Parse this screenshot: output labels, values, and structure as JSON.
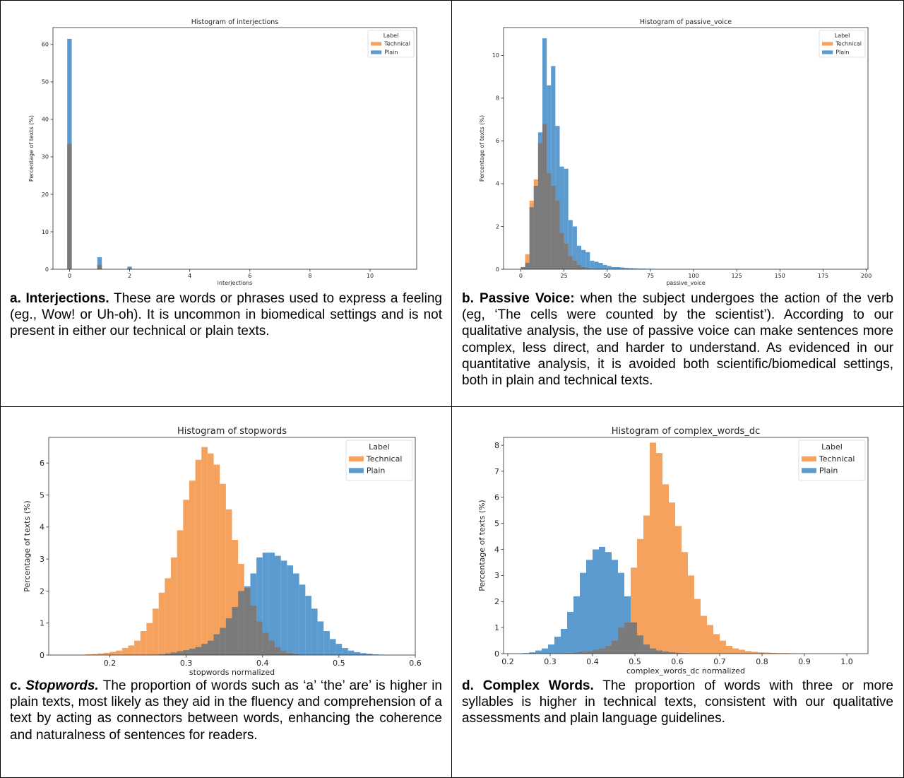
{
  "colors": {
    "technical": "#f5a25e",
    "plain": "#5b9bd0",
    "overlap": "#7b7b7b",
    "axes": "#262626"
  },
  "panels": [
    {
      "id": "a",
      "caption": {
        "head": "a. Interjections.",
        "head_italic": "",
        "body": " These are words or phrases used to express a feeling (eg., Wow! or Uh-oh). It is uncommon in biomedical settings and is not present in either our technical or plain texts."
      }
    },
    {
      "id": "b",
      "caption": {
        "head": "b. Passive Voice:",
        "head_italic": "",
        "body": " when the subject undergoes the action of the verb (eg, ‘The cells were counted by the scientist’). According to our qualitative analysis, the use of passive voice can make sentences more complex, less direct, and harder to understand. As evidenced in our quantitative analysis, it is avoided both scientific/biomedical settings, both in plain and technical texts."
      }
    },
    {
      "id": "c",
      "caption": {
        "head": "c. ",
        "head_italic": "Stopwords.",
        "body": " The proportion of words such as ‘a’ ‘the’ are’ is higher in plain texts, most likely as they aid in the fluency and comprehension of a text by acting as connectors between words, enhancing the coherence and naturalness of sentences for readers."
      }
    },
    {
      "id": "d",
      "caption": {
        "head": "d. Complex Words.",
        "head_italic": "",
        "body": " The proportion of words with three or more syllables is higher in technical texts, consistent with our qualitative assessments and plain language guidelines."
      }
    }
  ],
  "chart_data": [
    {
      "type": "bar",
      "title": "Histogram of interjections",
      "xlabel": "interjections",
      "ylabel": "Percentage of texts (%)",
      "xlim": [
        -0.55,
        11.55
      ],
      "ylim": [
        0,
        64.5
      ],
      "xticks": [
        0,
        2,
        4,
        6,
        8,
        10
      ],
      "xtick_labels": [
        "0",
        "2",
        "4",
        "6",
        "8",
        "10"
      ],
      "yticks": [
        0,
        10,
        20,
        30,
        40,
        50,
        60
      ],
      "ytick_labels": [
        "0",
        "10",
        "20",
        "30",
        "40",
        "50",
        "60"
      ],
      "bin_width": 0.15,
      "legend": {
        "title": "Label",
        "position": "top-right"
      },
      "series": [
        {
          "name": "Technical",
          "color": "technical",
          "x": [
            0,
            1,
            2
          ],
          "values": [
            33.5,
            1.2,
            0.2
          ]
        },
        {
          "name": "Plain",
          "color": "plain",
          "x": [
            0,
            1,
            2
          ],
          "values": [
            61.5,
            3.2,
            0.7
          ]
        }
      ]
    },
    {
      "type": "bar",
      "title": "Histogram of passive_voice",
      "xlabel": "passive_voice",
      "ylabel": "Percentage of texts (%)",
      "xlim": [
        -10,
        201
      ],
      "ylim": [
        0,
        11.3
      ],
      "xticks": [
        0,
        25,
        50,
        75,
        100,
        125,
        150,
        175,
        200
      ],
      "xtick_labels": [
        "0",
        "25",
        "50",
        "75",
        "100",
        "125",
        "150",
        "175",
        "200"
      ],
      "yticks": [
        0,
        2,
        4,
        6,
        8,
        10
      ],
      "ytick_labels": [
        "0",
        "2",
        "4",
        "6",
        "8",
        "10"
      ],
      "bin_width": 2.5,
      "legend": {
        "title": "Label",
        "position": "top-right"
      },
      "series": [
        {
          "name": "Technical",
          "color": "technical",
          "x": [
            1.25,
            3.75,
            6.25,
            8.75,
            11.25,
            13.75,
            16.25,
            18.75,
            21.25,
            23.75,
            26.25,
            28.75,
            31.25,
            33.75,
            36.25,
            38.75
          ],
          "values": [
            0.1,
            0.7,
            3.2,
            4.2,
            5.9,
            6.8,
            4.5,
            3.9,
            3.2,
            1.7,
            1.2,
            0.6,
            0.4,
            0.2,
            0.1,
            0.05
          ]
        },
        {
          "name": "Plain",
          "color": "plain",
          "x": [
            1.25,
            3.75,
            6.25,
            8.75,
            11.25,
            13.75,
            16.25,
            18.75,
            21.25,
            23.75,
            26.25,
            28.75,
            31.25,
            33.75,
            36.25,
            38.75,
            41.25,
            43.75,
            46.25,
            48.75,
            51.25,
            53.75,
            56.25,
            58.75,
            61.25,
            63.75,
            66.25,
            68.75,
            71.25,
            73.75,
            76.25
          ],
          "values": [
            0.1,
            0.3,
            2.9,
            3.9,
            6.4,
            10.8,
            8.6,
            9.5,
            6.7,
            4.8,
            4.7,
            2.3,
            2.0,
            1.1,
            0.9,
            0.8,
            0.4,
            0.35,
            0.3,
            0.2,
            0.15,
            0.1,
            0.1,
            0.08,
            0.06,
            0.05,
            0.04,
            0.03,
            0.03,
            0.02,
            0.02
          ]
        }
      ]
    },
    {
      "type": "bar",
      "title": "Histogram of stopwords",
      "xlabel": "stopwords normalized",
      "ylabel": "Percentage of texts (%)",
      "xlim": [
        0.12,
        0.6
      ],
      "ylim": [
        0,
        6.8
      ],
      "xticks": [
        0.2,
        0.3,
        0.4,
        0.5,
        0.6
      ],
      "xtick_labels": [
        "0.2",
        "0.3",
        "0.4",
        "0.5",
        "0.6"
      ],
      "yticks": [
        0,
        1,
        2,
        3,
        4,
        5,
        6
      ],
      "ytick_labels": [
        "0",
        "1",
        "2",
        "3",
        "4",
        "5",
        "6"
      ],
      "bin_width": 0.008,
      "legend": {
        "title": "Label",
        "position": "top-right"
      },
      "series": [
        {
          "name": "Technical",
          "color": "technical",
          "x": [
            0.172,
            0.18,
            0.188,
            0.196,
            0.204,
            0.212,
            0.22,
            0.228,
            0.236,
            0.244,
            0.252,
            0.26,
            0.268,
            0.276,
            0.284,
            0.292,
            0.3,
            0.308,
            0.316,
            0.324,
            0.332,
            0.34,
            0.348,
            0.356,
            0.364,
            0.372,
            0.38,
            0.388,
            0.396,
            0.404,
            0.412,
            0.42,
            0.428,
            0.436,
            0.444
          ],
          "values": [
            0.02,
            0.03,
            0.05,
            0.07,
            0.1,
            0.14,
            0.22,
            0.3,
            0.45,
            0.75,
            1.0,
            1.45,
            1.95,
            2.4,
            3.05,
            3.9,
            4.85,
            5.45,
            6.1,
            6.5,
            6.3,
            5.95,
            5.35,
            4.55,
            3.6,
            2.85,
            2.1,
            1.55,
            1.05,
            0.7,
            0.45,
            0.25,
            0.13,
            0.07,
            0.03
          ]
        },
        {
          "name": "Plain",
          "color": "plain",
          "x": [
            0.26,
            0.268,
            0.276,
            0.284,
            0.292,
            0.3,
            0.308,
            0.316,
            0.324,
            0.332,
            0.34,
            0.348,
            0.356,
            0.364,
            0.372,
            0.38,
            0.388,
            0.396,
            0.404,
            0.412,
            0.42,
            0.428,
            0.436,
            0.444,
            0.452,
            0.46,
            0.468,
            0.476,
            0.484,
            0.492,
            0.5,
            0.508,
            0.516,
            0.524,
            0.532,
            0.54,
            0.548,
            0.556
          ],
          "values": [
            0.01,
            0.02,
            0.05,
            0.08,
            0.12,
            0.15,
            0.2,
            0.25,
            0.35,
            0.45,
            0.65,
            0.85,
            1.15,
            1.5,
            2.0,
            2.15,
            2.55,
            3.05,
            3.2,
            3.2,
            3.1,
            2.95,
            2.8,
            2.55,
            2.2,
            1.85,
            1.45,
            1.05,
            0.75,
            0.5,
            0.35,
            0.22,
            0.14,
            0.09,
            0.06,
            0.04,
            0.02,
            0.01
          ]
        }
      ]
    },
    {
      "type": "bar",
      "title": "Histogram of complex_words_dc",
      "xlabel": "complex_words_dc normalized",
      "ylabel": "Percentage of texts (%)",
      "xlim": [
        0.19,
        1.05
      ],
      "ylim": [
        0,
        8.3
      ],
      "xticks": [
        0.2,
        0.3,
        0.4,
        0.5,
        0.6,
        0.7,
        0.8,
        0.9,
        1.0
      ],
      "xtick_labels": [
        "0.2",
        "0.3",
        "0.4",
        "0.5",
        "0.6",
        "0.7",
        "0.8",
        "0.9",
        "1.0"
      ],
      "yticks": [
        0,
        1,
        2,
        3,
        4,
        5,
        6,
        7,
        8
      ],
      "ytick_labels": [
        "0",
        "1",
        "2",
        "3",
        "4",
        "5",
        "6",
        "7",
        "8"
      ],
      "bin_width": 0.015,
      "legend": {
        "title": "Label",
        "position": "top-right"
      },
      "series": [
        {
          "name": "Technical",
          "color": "technical",
          "x": [
            0.3475,
            0.3625,
            0.3775,
            0.3925,
            0.4075,
            0.4225,
            0.4375,
            0.4525,
            0.4675,
            0.4825,
            0.4975,
            0.5125,
            0.5275,
            0.5425,
            0.5575,
            0.5725,
            0.5875,
            0.6025,
            0.6175,
            0.6325,
            0.6475,
            0.6625,
            0.6775,
            0.6925,
            0.7075,
            0.7225,
            0.7375,
            0.7525,
            0.7675,
            0.7825,
            0.7975,
            0.8125,
            0.8275,
            0.8425,
            0.8575,
            0.8725
          ],
          "values": [
            0.03,
            0.05,
            0.08,
            0.1,
            0.15,
            0.2,
            0.3,
            0.5,
            1.0,
            1.2,
            3.3,
            4.4,
            5.3,
            8.1,
            7.7,
            6.5,
            5.8,
            4.9,
            3.9,
            3.0,
            2.1,
            1.45,
            1.1,
            0.75,
            0.5,
            0.3,
            0.2,
            0.15,
            0.1,
            0.07,
            0.05,
            0.04,
            0.03,
            0.02,
            0.02,
            0.01
          ]
        },
        {
          "name": "Plain",
          "color": "plain",
          "x": [
            0.2425,
            0.2575,
            0.2725,
            0.2875,
            0.3025,
            0.3175,
            0.3325,
            0.3475,
            0.3625,
            0.3775,
            0.3925,
            0.4075,
            0.4225,
            0.4375,
            0.4525,
            0.4675,
            0.4825,
            0.4975,
            0.5125,
            0.5275,
            0.5425,
            0.5575,
            0.5725,
            0.5875,
            0.6025,
            0.6175,
            0.6325
          ],
          "values": [
            0.02,
            0.05,
            0.12,
            0.2,
            0.35,
            0.65,
            0.95,
            1.6,
            2.2,
            3.1,
            3.6,
            4.0,
            4.1,
            3.9,
            3.6,
            3.1,
            2.2,
            1.2,
            0.7,
            0.35,
            0.2,
            0.12,
            0.08,
            0.05,
            0.03,
            0.02,
            0.01
          ]
        }
      ]
    }
  ]
}
